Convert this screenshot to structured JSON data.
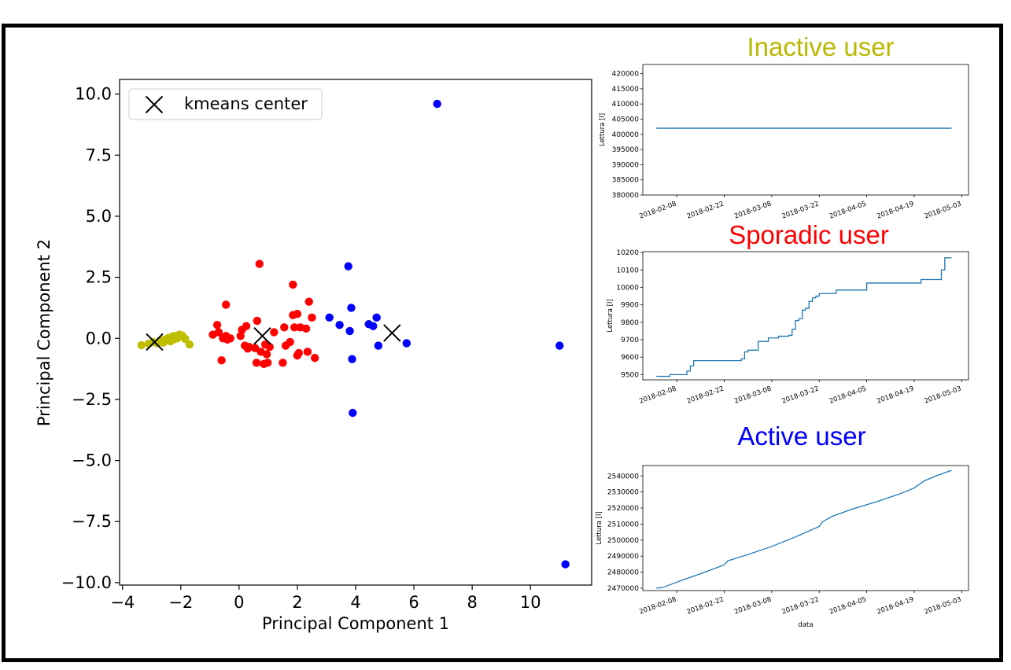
{
  "chart_data": [
    {
      "type": "scatter",
      "title": "",
      "xlabel": "Principal Component 1",
      "ylabel": "Principal Component 2",
      "xlim": [
        -4.1,
        12.1
      ],
      "ylim": [
        -10.1,
        10.6
      ],
      "xticks": [
        "−4",
        "−2",
        "0",
        "2",
        "4",
        "6",
        "8",
        "10"
      ],
      "xtick_values": [
        -4,
        -2,
        0,
        2,
        4,
        6,
        8,
        10
      ],
      "yticks": [
        "10.0",
        "7.5",
        "5.0",
        "2.5",
        "0.0",
        "−2.5",
        "−5.0",
        "−7.5",
        "−10.0"
      ],
      "ytick_values": [
        10,
        7.5,
        5,
        2.5,
        0,
        -2.5,
        -5,
        -7.5,
        -10
      ],
      "legend": {
        "position": "top-left",
        "label": "kmeans center"
      },
      "series": [
        {
          "color": "#bfbf00",
          "points": [
            [
              -3.35,
              -0.28
            ],
            [
              -3.1,
              -0.22
            ],
            [
              -2.95,
              -0.15
            ],
            [
              -2.8,
              -0.2
            ],
            [
              -2.7,
              -0.1
            ],
            [
              -2.6,
              -0.18
            ],
            [
              -2.5,
              -0.08
            ],
            [
              -2.42,
              0.02
            ],
            [
              -2.35,
              -0.12
            ],
            [
              -2.28,
              0.08
            ],
            [
              -2.2,
              0.1
            ],
            [
              -2.12,
              0.0
            ],
            [
              -2.05,
              0.15
            ],
            [
              -1.95,
              0.12
            ],
            [
              -1.85,
              -0.02
            ],
            [
              -1.7,
              -0.25
            ],
            [
              -2.55,
              -0.05
            ],
            [
              -2.25,
              -0.05
            ]
          ]
        },
        {
          "color": "#ff0000",
          "points": [
            [
              -0.9,
              0.15
            ],
            [
              -0.75,
              0.55
            ],
            [
              -0.7,
              0.25
            ],
            [
              -0.6,
              -0.9
            ],
            [
              -0.55,
              0.0
            ],
            [
              -0.45,
              1.38
            ],
            [
              -0.45,
              0.1
            ],
            [
              -0.4,
              -0.05
            ],
            [
              -0.3,
              0.0
            ],
            [
              0.05,
              0.1
            ],
            [
              0.1,
              0.35
            ],
            [
              0.25,
              0.5
            ],
            [
              0.2,
              -0.3
            ],
            [
              0.3,
              -0.42
            ],
            [
              0.35,
              -0.35
            ],
            [
              0.55,
              -0.4
            ],
            [
              0.6,
              -1.0
            ],
            [
              0.62,
              0.72
            ],
            [
              0.7,
              3.05
            ],
            [
              0.75,
              -0.55
            ],
            [
              0.85,
              -1.05
            ],
            [
              0.9,
              -0.25
            ],
            [
              0.95,
              -0.65
            ],
            [
              0.98,
              -1.0
            ],
            [
              1.05,
              -0.35
            ],
            [
              1.2,
              0.25
            ],
            [
              1.5,
              -1.0
            ],
            [
              1.55,
              0.45
            ],
            [
              1.6,
              -0.3
            ],
            [
              1.75,
              -0.15
            ],
            [
              1.85,
              2.2
            ],
            [
              1.85,
              0.95
            ],
            [
              1.9,
              0.45
            ],
            [
              2.0,
              1.0
            ],
            [
              2.0,
              -0.7
            ],
            [
              2.05,
              -0.6
            ],
            [
              2.1,
              0.45
            ],
            [
              2.3,
              0.4
            ],
            [
              2.35,
              -0.55
            ],
            [
              2.4,
              1.5
            ],
            [
              2.5,
              0.85
            ],
            [
              2.6,
              -0.8
            ]
          ]
        },
        {
          "color": "#0000ff",
          "points": [
            [
              3.1,
              0.85
            ],
            [
              3.45,
              0.55
            ],
            [
              3.75,
              2.95
            ],
            [
              3.8,
              0.3
            ],
            [
              3.85,
              1.25
            ],
            [
              3.88,
              -0.85
            ],
            [
              3.9,
              -3.05
            ],
            [
              4.45,
              0.58
            ],
            [
              4.6,
              0.5
            ],
            [
              4.72,
              0.85
            ],
            [
              4.78,
              -0.3
            ],
            [
              5.75,
              -0.2
            ],
            [
              6.8,
              9.6
            ],
            [
              11.0,
              -0.3
            ],
            [
              11.2,
              -9.25
            ]
          ]
        }
      ],
      "centers": [
        [
          -2.9,
          -0.15
        ],
        [
          0.8,
          0.1
        ],
        [
          5.25,
          0.22
        ]
      ]
    },
    {
      "type": "line",
      "title": "Inactive user",
      "title_color": "#b8b800",
      "ylabel": "Lettura [l]",
      "xlabel": "",
      "xticks": [
        "2018-02-08",
        "2018-02-22",
        "2018-03-08",
        "2018-03-22",
        "2018-04-05",
        "2018-04-19",
        "2018-05-03"
      ],
      "xlim": [
        "2018-01-29",
        "2018-05-05"
      ],
      "ylim": [
        380000,
        423000
      ],
      "yticks": [
        "420000",
        "415000",
        "410000",
        "405000",
        "400000",
        "395000",
        "390000",
        "385000",
        "380000"
      ],
      "ytick_values": [
        420000,
        415000,
        410000,
        405000,
        400000,
        395000,
        390000,
        385000,
        380000
      ],
      "color": "#1f77b4",
      "x": [
        "2018-02-02",
        "2018-04-30"
      ],
      "y": [
        402000,
        402000
      ]
    },
    {
      "type": "line",
      "title": "Sporadic user",
      "title_color": "#ff0000",
      "ylabel": "Lettura [l]",
      "xlabel": "",
      "xticks": [
        "2018-02-08",
        "2018-02-22",
        "2018-03-08",
        "2018-03-22",
        "2018-04-05",
        "2018-04-19",
        "2018-05-03"
      ],
      "xlim": [
        "2018-01-29",
        "2018-05-05"
      ],
      "ylim": [
        9470,
        10205
      ],
      "yticks": [
        "10200",
        "10100",
        "10000",
        "9900",
        "9800",
        "9700",
        "9600",
        "9500"
      ],
      "ytick_values": [
        10200,
        10100,
        10000,
        9900,
        9800,
        9700,
        9600,
        9500
      ],
      "color": "#1f77b4",
      "step": true,
      "x": [
        "2018-02-02",
        "2018-02-06",
        "2018-02-11",
        "2018-02-12",
        "2018-02-13",
        "2018-02-19",
        "2018-02-27",
        "2018-02-28",
        "2018-03-01",
        "2018-03-04",
        "2018-03-07",
        "2018-03-10",
        "2018-03-13",
        "2018-03-14",
        "2018-03-15",
        "2018-03-16",
        "2018-03-17",
        "2018-03-18",
        "2018-03-19",
        "2018-03-20",
        "2018-03-21",
        "2018-03-22",
        "2018-03-23",
        "2018-03-27",
        "2018-04-05",
        "2018-04-20",
        "2018-04-21",
        "2018-04-27",
        "2018-04-28",
        "2018-04-30"
      ],
      "y": [
        9490,
        9500,
        9520,
        9550,
        9580,
        9580,
        9590,
        9630,
        9640,
        9690,
        9710,
        9720,
        9725,
        9760,
        9810,
        9820,
        9870,
        9880,
        9920,
        9940,
        9950,
        9965,
        9965,
        9985,
        10025,
        10025,
        10045,
        10100,
        10170,
        10170
      ]
    },
    {
      "type": "line",
      "title": "Active user",
      "title_color": "#0000ff",
      "ylabel": "Lettura [l]",
      "xlabel": "data",
      "xticks": [
        "2018-02-08",
        "2018-02-22",
        "2018-03-08",
        "2018-03-22",
        "2018-04-05",
        "2018-04-19",
        "2018-05-03"
      ],
      "xlim": [
        "2018-01-29",
        "2018-05-05"
      ],
      "ylim": [
        2468500,
        2546500
      ],
      "yticks": [
        "2540000",
        "2530000",
        "2520000",
        "2510000",
        "2500000",
        "2490000",
        "2480000",
        "2470000"
      ],
      "ytick_values": [
        2540000,
        2530000,
        2520000,
        2510000,
        2500000,
        2490000,
        2480000,
        2470000
      ],
      "color": "#1f77b4",
      "x": [
        "2018-02-02",
        "2018-02-04",
        "2018-02-09",
        "2018-02-15",
        "2018-02-22",
        "2018-02-23",
        "2018-03-01",
        "2018-03-08",
        "2018-03-15",
        "2018-03-22",
        "2018-03-23",
        "2018-03-26",
        "2018-04-01",
        "2018-04-08",
        "2018-04-15",
        "2018-04-19",
        "2018-04-22",
        "2018-04-26",
        "2018-04-30"
      ],
      "y": [
        2470000,
        2470500,
        2474500,
        2479000,
        2484500,
        2487000,
        2491000,
        2496000,
        2502000,
        2508500,
        2511500,
        2515000,
        2519500,
        2524000,
        2529000,
        2532500,
        2537000,
        2540500,
        2543500
      ]
    }
  ]
}
